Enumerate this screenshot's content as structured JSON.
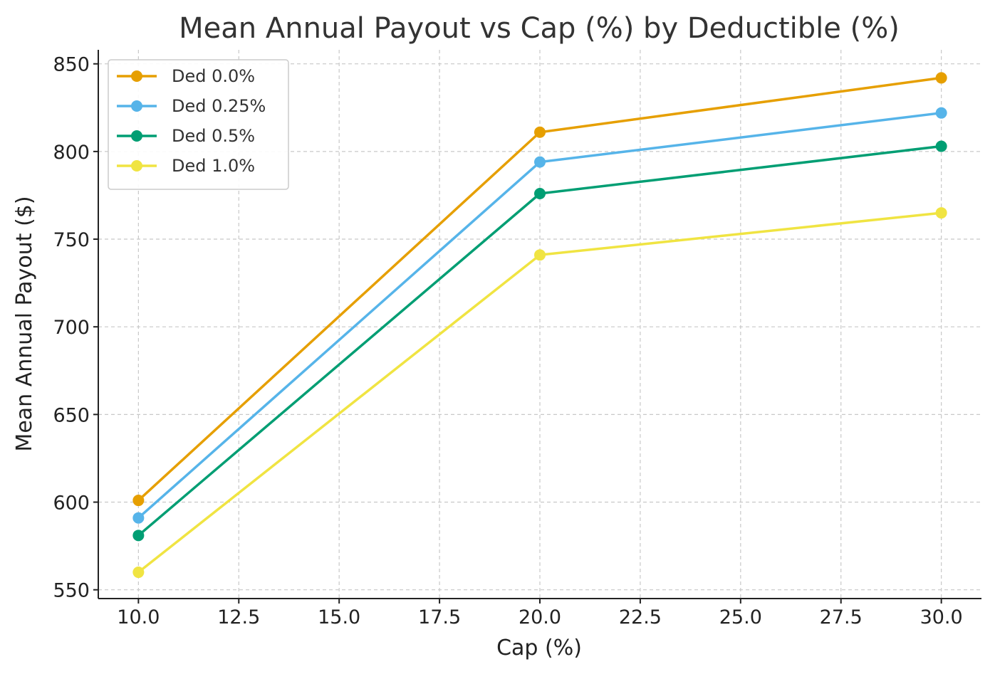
{
  "chart_data": {
    "type": "line",
    "title": "Mean Annual Payout vs Cap (%) by Deductible (%)",
    "xlabel": "Cap (%)",
    "ylabel": "Mean Annual Payout ($)",
    "x": [
      10,
      20,
      30
    ],
    "xlim": [
      9.0,
      31.0
    ],
    "ylim": [
      545,
      858
    ],
    "x_ticks": [
      10.0,
      12.5,
      15.0,
      17.5,
      20.0,
      22.5,
      25.0,
      27.5,
      30.0
    ],
    "x_tick_labels": [
      "10.0",
      "12.5",
      "15.0",
      "17.5",
      "20.0",
      "22.5",
      "25.0",
      "27.5",
      "30.0"
    ],
    "y_ticks": [
      550,
      600,
      650,
      700,
      750,
      800,
      850
    ],
    "y_tick_labels": [
      "550",
      "600",
      "650",
      "700",
      "750",
      "800",
      "850"
    ],
    "grid": true,
    "legend_position": "top-left",
    "series": [
      {
        "name": "Ded 0.0%",
        "color": "#E69F00",
        "values": [
          601,
          811,
          842
        ]
      },
      {
        "name": "Ded 0.25%",
        "color": "#56B4E9",
        "values": [
          591,
          794,
          822
        ]
      },
      {
        "name": "Ded 0.5%",
        "color": "#009E73",
        "values": [
          581,
          776,
          803
        ]
      },
      {
        "name": "Ded 1.0%",
        "color": "#F0E442",
        "values": [
          560,
          741,
          765
        ]
      }
    ]
  }
}
